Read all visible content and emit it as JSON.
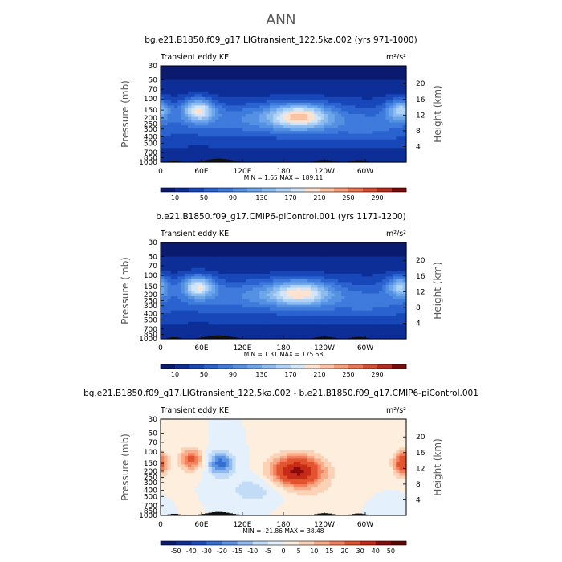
{
  "figure_title": "ANN",
  "chart_data": [
    {
      "type": "heatmap",
      "title": "bg.e21.B1850.f09_g17.LIGtransient_122.5ka.002 (yrs 971-1000)",
      "left_label": "Transient eddy KE",
      "units": "m²/s²",
      "ylabel": "Pressure (mb)",
      "y2label": "Height (km)",
      "y_ticks": [
        "30",
        "50",
        "70",
        "100",
        "150",
        "200",
        "250",
        "300",
        "400",
        "500",
        "700",
        "850",
        "1000"
      ],
      "y2_ticks": [
        "20",
        "16",
        "12",
        "8",
        "4"
      ],
      "x_ticks": [
        "0",
        "60E",
        "120E",
        "180",
        "120W",
        "60W"
      ],
      "stats": "MIN =     1.65   MAX =  189.11",
      "min": 1.65,
      "max": 189.11,
      "colorbar_levels": [
        10,
        30,
        50,
        70,
        90,
        110,
        130,
        150,
        170,
        190,
        210,
        230,
        250,
        270,
        290
      ],
      "colorbar_labels": [
        "10",
        "50",
        "90",
        "130",
        "170",
        "210",
        "250",
        "290"
      ],
      "jet_maxima": [
        {
          "lon": 55,
          "pressure": 150,
          "value": 175
        },
        {
          "lon": 200,
          "pressure": 200,
          "value": 189
        },
        {
          "lon": 350,
          "pressure": 150,
          "value": 150
        }
      ]
    },
    {
      "type": "heatmap",
      "title": "b.e21.B1850.f09_g17.CMIP6-piControl.001 (yrs 1171-1200)",
      "left_label": "Transient eddy KE",
      "units": "m²/s²",
      "ylabel": "Pressure (mb)",
      "y2label": "Height (km)",
      "y_ticks": [
        "30",
        "50",
        "70",
        "100",
        "150",
        "200",
        "250",
        "300",
        "400",
        "500",
        "700",
        "850",
        "1000"
      ],
      "y2_ticks": [
        "20",
        "16",
        "12",
        "8",
        "4"
      ],
      "x_ticks": [
        "0",
        "60E",
        "120E",
        "180",
        "120W",
        "60W"
      ],
      "stats": "MIN =     1.31   MAX =  175.58",
      "min": 1.31,
      "max": 175.58,
      "colorbar_levels": [
        10,
        30,
        50,
        70,
        90,
        110,
        130,
        150,
        170,
        190,
        210,
        230,
        250,
        270,
        290
      ],
      "colorbar_labels": [
        "10",
        "50",
        "90",
        "130",
        "170",
        "210",
        "250",
        "290"
      ],
      "jet_maxima": [
        {
          "lon": 55,
          "pressure": 150,
          "value": 170
        },
        {
          "lon": 210,
          "pressure": 200,
          "value": 175
        },
        {
          "lon": 350,
          "pressure": 150,
          "value": 150
        }
      ]
    },
    {
      "type": "heatmap",
      "title": "bg.e21.B1850.f09_g17.LIGtransient_122.5ka.002 - b.e21.B1850.f09_g17.CMIP6-piControl.001",
      "left_label": "Transient eddy KE",
      "units": "m²/s²",
      "ylabel": "Pressure (mb)",
      "y2label": "Height (km)",
      "y_ticks": [
        "30",
        "50",
        "70",
        "100",
        "150",
        "200",
        "250",
        "300",
        "400",
        "500",
        "700",
        "850",
        "1000"
      ],
      "y2_ticks": [
        "20",
        "16",
        "12",
        "8",
        "4"
      ],
      "x_ticks": [
        "0",
        "60E",
        "120E",
        "180",
        "120W",
        "60W"
      ],
      "stats": "MIN =  -21.86   MAX =   38.48",
      "min": -21.86,
      "max": 38.48,
      "colorbar_levels": [
        -50,
        -40,
        -30,
        -20,
        -15,
        -10,
        -5,
        0,
        5,
        10,
        15,
        20,
        30,
        40,
        50
      ],
      "colorbar_labels": [
        "-50",
        "-40",
        "-30",
        "-20",
        "-15",
        "-10",
        "-5",
        "0",
        "5",
        "10",
        "15",
        "20",
        "30",
        "40",
        "50"
      ],
      "anomalies": [
        {
          "lon": 200,
          "pressure": 200,
          "value": 38
        },
        {
          "lon": 45,
          "pressure": 120,
          "value": 20
        },
        {
          "lon": 80,
          "pressure": 150,
          "value": -20
        },
        {
          "lon": 355,
          "pressure": 150,
          "value": 25
        }
      ]
    }
  ],
  "colors": {
    "seq": [
      "#0a1a6e",
      "#0d2e96",
      "#1747b8",
      "#2a63cf",
      "#3f7bdc",
      "#5591e3",
      "#6da6ea",
      "#8dbcf0",
      "#b0d2f5",
      "#d3e6f9",
      "#fde3cf",
      "#fbc3a4",
      "#f79f78",
      "#ee7650",
      "#d94e33",
      "#b82b1f",
      "#7a0c0c"
    ],
    "div": [
      "#0a1a6e",
      "#0d2e96",
      "#1a4bbf",
      "#3470d4",
      "#5c94e3",
      "#8fb9ef",
      "#c2dcf7",
      "#e4f0fb",
      "#fdeede",
      "#fbd2b6",
      "#f8ac87",
      "#f2805c",
      "#e2542f",
      "#c72a16",
      "#8a0b0b",
      "#5e0505"
    ]
  }
}
